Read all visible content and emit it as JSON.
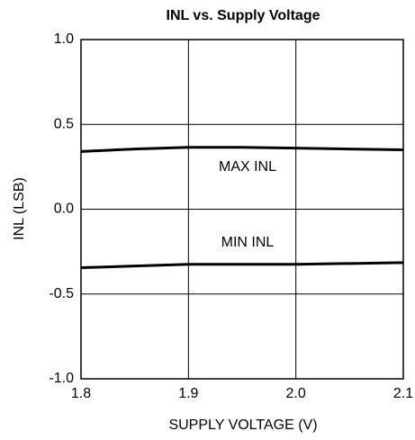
{
  "chart_data": {
    "type": "line",
    "title": "INL vs. Supply Voltage",
    "xlabel": "SUPPLY VOLTAGE (V)",
    "ylabel": "INL (LSB)",
    "x": [
      1.8,
      1.85,
      1.9,
      1.95,
      2.0,
      2.05,
      2.1
    ],
    "series": [
      {
        "name": "MAX INL",
        "color": "#000000",
        "values": [
          0.34,
          0.355,
          0.365,
          0.365,
          0.36,
          0.355,
          0.35
        ]
      },
      {
        "name": "MIN INL",
        "color": "#000000",
        "values": [
          -0.345,
          -0.335,
          -0.325,
          -0.325,
          -0.325,
          -0.32,
          -0.315
        ]
      }
    ],
    "xlim": [
      1.8,
      2.1
    ],
    "xticks": [
      1.8,
      1.9,
      {
        "value": 2.0,
        "label": "2.0"
      },
      2.1
    ],
    "ylim": [
      -1.0,
      1.0
    ],
    "yticks": [
      {
        "value": -1.0,
        "label": "-1.0"
      },
      {
        "value": -0.5,
        "label": "-0.5"
      },
      {
        "value": 0.0,
        "label": "0.0"
      },
      {
        "value": 0.5,
        "label": "0.5"
      },
      {
        "value": 1.0,
        "label": "1.0"
      }
    ],
    "grid": true
  }
}
